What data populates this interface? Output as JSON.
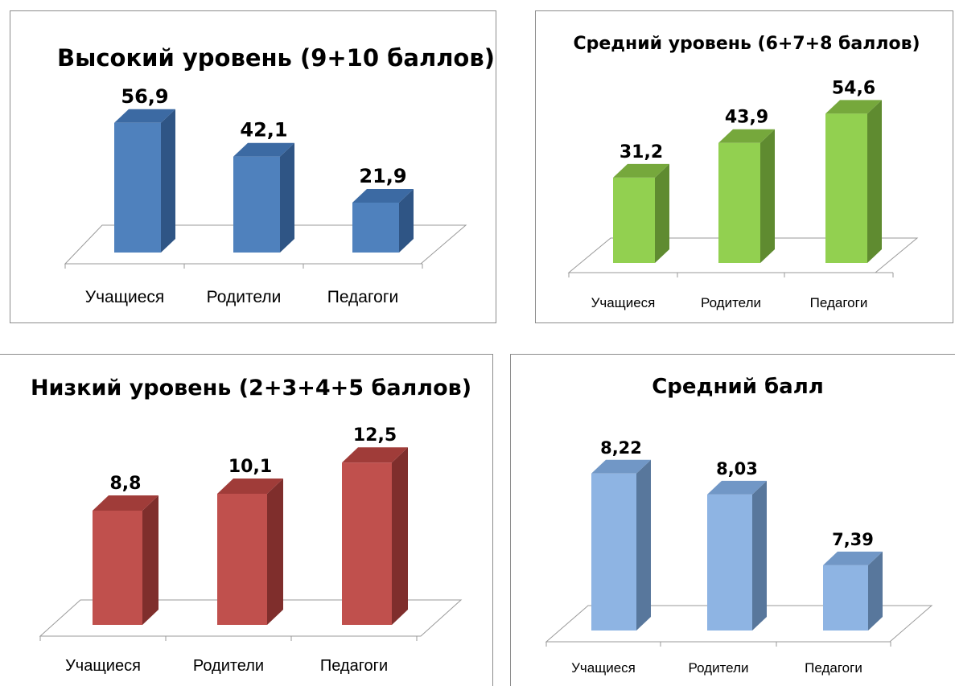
{
  "chart_data": [
    {
      "type": "bar",
      "title": "Высокий уровень (9+10 баллов)",
      "categories": [
        "Учащиеся",
        "Родители",
        "Педагоги"
      ],
      "values": [
        56.9,
        42.1,
        21.9
      ],
      "value_labels": [
        "56,9",
        "42,1",
        "21,9"
      ],
      "ylim": [
        0,
        60
      ],
      "grid": false,
      "colors": {
        "front": "#4f81bd",
        "side": "#2f5585",
        "top": "#3c6aa3"
      }
    },
    {
      "type": "bar",
      "title": "Средний уровень (6+7+8 баллов)",
      "categories": [
        "Учащиеся",
        "Родители",
        "Педагоги"
      ],
      "values": [
        31.2,
        43.9,
        54.6
      ],
      "value_labels": [
        "31,2",
        "43,9",
        "54,6"
      ],
      "ylim": [
        0,
        60
      ],
      "grid": false,
      "colors": {
        "front": "#92d050",
        "side": "#5f8b30",
        "top": "#76a83c"
      }
    },
    {
      "type": "bar",
      "title": "Низкий уровень (2+3+4+5 баллов)",
      "categories": [
        "Учащиеся",
        "Родители",
        "Педагоги"
      ],
      "values": [
        8.8,
        10.1,
        12.5
      ],
      "value_labels": [
        "8,8",
        "10,1",
        "12,5"
      ],
      "ylim": [
        0,
        14
      ],
      "grid": false,
      "colors": {
        "front": "#c0504d",
        "side": "#7f2e2c",
        "top": "#a03c39"
      }
    },
    {
      "type": "bar",
      "title": "Средний балл",
      "categories": [
        "Учащиеся",
        "Родители",
        "Педагоги"
      ],
      "values": [
        8.22,
        8.03,
        7.39
      ],
      "value_labels": [
        "8,22",
        "8,03",
        "7,39"
      ],
      "ylim": [
        6.8,
        8.4
      ],
      "grid": false,
      "colors": {
        "front": "#8eb4e3",
        "side": "#58779c",
        "top": "#7197c6"
      }
    }
  ]
}
